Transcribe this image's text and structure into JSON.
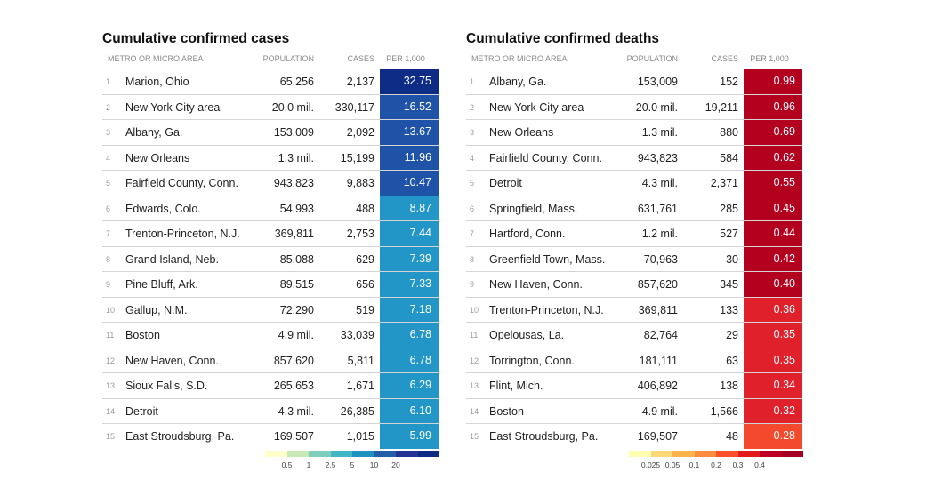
{
  "cases": {
    "title": "Cumulative confirmed cases",
    "columns": {
      "area": "METRO OR MICRO AREA",
      "population": "POPULATION",
      "cases": "CASES",
      "per": "PER 1,000"
    },
    "rows": [
      {
        "rank": "1",
        "area": "Marion, Ohio",
        "population": "65,256",
        "cases": "2,137",
        "per": "32.75",
        "color": "#0e2b85"
      },
      {
        "rank": "2",
        "area": "New York City area",
        "population": "20.0 mil.",
        "cases": "330,117",
        "per": "16.52",
        "color": "#1f53a8"
      },
      {
        "rank": "3",
        "area": "Albany, Ga.",
        "population": "153,009",
        "cases": "2,092",
        "per": "13.67",
        "color": "#1f53a8"
      },
      {
        "rank": "4",
        "area": "New Orleans",
        "population": "1.3 mil.",
        "cases": "15,199",
        "per": "11.96",
        "color": "#1f53a8"
      },
      {
        "rank": "5",
        "area": "Fairfield County, Conn.",
        "population": "943,823",
        "cases": "9,883",
        "per": "10.47",
        "color": "#1f53a8"
      },
      {
        "rank": "6",
        "area": "Edwards, Colo.",
        "population": "54,993",
        "cases": "488",
        "per": "8.87",
        "color": "#2196c7"
      },
      {
        "rank": "7",
        "area": "Trenton-Princeton, N.J.",
        "population": "369,811",
        "cases": "2,753",
        "per": "7.44",
        "color": "#2196c7"
      },
      {
        "rank": "8",
        "area": "Grand Island, Neb.",
        "population": "85,088",
        "cases": "629",
        "per": "7.39",
        "color": "#2196c7"
      },
      {
        "rank": "9",
        "area": "Pine Bluff, Ark.",
        "population": "89,515",
        "cases": "656",
        "per": "7.33",
        "color": "#2196c7"
      },
      {
        "rank": "10",
        "area": "Gallup, N.M.",
        "population": "72,290",
        "cases": "519",
        "per": "7.18",
        "color": "#2196c7"
      },
      {
        "rank": "11",
        "area": "Boston",
        "population": "4.9 mil.",
        "cases": "33,039",
        "per": "6.78",
        "color": "#2196c7"
      },
      {
        "rank": "12",
        "area": "New Haven, Conn.",
        "population": "857,620",
        "cases": "5,811",
        "per": "6.78",
        "color": "#2196c7"
      },
      {
        "rank": "13",
        "area": "Sioux Falls, S.D.",
        "population": "265,653",
        "cases": "1,671",
        "per": "6.29",
        "color": "#2196c7"
      },
      {
        "rank": "14",
        "area": "Detroit",
        "population": "4.3 mil.",
        "cases": "26,385",
        "per": "6.10",
        "color": "#2196c7"
      },
      {
        "rank": "15",
        "area": "East Stroudsburg, Pa.",
        "population": "169,507",
        "cases": "1,015",
        "per": "5.99",
        "color": "#2196c7"
      }
    ],
    "legend": {
      "colors": [
        "#ffffcc",
        "#c7e9b4",
        "#7fcdbb",
        "#41b6c4",
        "#1d91c0",
        "#225ea8",
        "#253494",
        "#0c2c84"
      ],
      "ticks": [
        "0.5",
        "1",
        "2.5",
        "5",
        "10",
        "20"
      ]
    }
  },
  "deaths": {
    "title": "Cumulative confirmed deaths",
    "columns": {
      "area": "METRO OR MICRO AREA",
      "population": "POPULATION",
      "cases": "CASES",
      "per": "PER 1,000"
    },
    "rows": [
      {
        "rank": "1",
        "area": "Albany, Ga.",
        "population": "153,009",
        "cases": "152",
        "per": "0.99",
        "color": "#b3001f"
      },
      {
        "rank": "2",
        "area": "New York City area",
        "population": "20.0 mil.",
        "cases": "19,211",
        "per": "0.96",
        "color": "#b3001f"
      },
      {
        "rank": "3",
        "area": "New Orleans",
        "population": "1.3 mil.",
        "cases": "880",
        "per": "0.69",
        "color": "#b3001f"
      },
      {
        "rank": "4",
        "area": "Fairfield County, Conn.",
        "population": "943,823",
        "cases": "584",
        "per": "0.62",
        "color": "#b3001f"
      },
      {
        "rank": "5",
        "area": "Detroit",
        "population": "4.3 mil.",
        "cases": "2,371",
        "per": "0.55",
        "color": "#b3001f"
      },
      {
        "rank": "6",
        "area": "Springfield, Mass.",
        "population": "631,761",
        "cases": "285",
        "per": "0.45",
        "color": "#b3001f"
      },
      {
        "rank": "7",
        "area": "Hartford, Conn.",
        "population": "1.2 mil.",
        "cases": "527",
        "per": "0.44",
        "color": "#b3001f"
      },
      {
        "rank": "8",
        "area": "Greenfield Town, Mass.",
        "population": "70,963",
        "cases": "30",
        "per": "0.42",
        "color": "#b3001f"
      },
      {
        "rank": "9",
        "area": "New Haven, Conn.",
        "population": "857,620",
        "cases": "345",
        "per": "0.40",
        "color": "#b3001f"
      },
      {
        "rank": "10",
        "area": "Trenton-Princeton, N.J.",
        "population": "369,811",
        "cases": "133",
        "per": "0.36",
        "color": "#e0202a"
      },
      {
        "rank": "11",
        "area": "Opelousas, La.",
        "population": "82,764",
        "cases": "29",
        "per": "0.35",
        "color": "#e0202a"
      },
      {
        "rank": "12",
        "area": "Torrington, Conn.",
        "population": "181,111",
        "cases": "63",
        "per": "0.35",
        "color": "#e0202a"
      },
      {
        "rank": "13",
        "area": "Flint, Mich.",
        "population": "406,892",
        "cases": "138",
        "per": "0.34",
        "color": "#e0202a"
      },
      {
        "rank": "14",
        "area": "Boston",
        "population": "4.9 mil.",
        "cases": "1,566",
        "per": "0.32",
        "color": "#e0202a"
      },
      {
        "rank": "15",
        "area": "East Stroudsburg, Pa.",
        "population": "169,507",
        "cases": "48",
        "per": "0.28",
        "color": "#f34a2d"
      }
    ],
    "legend": {
      "colors": [
        "#ffffb2",
        "#fed976",
        "#feb24c",
        "#fd8d3c",
        "#fc4e2a",
        "#e31a1c",
        "#bd0026",
        "#a50026"
      ],
      "ticks": [
        "0.025",
        "0.05",
        "0.1",
        "0.2",
        "0.3",
        "0.4"
      ]
    }
  }
}
